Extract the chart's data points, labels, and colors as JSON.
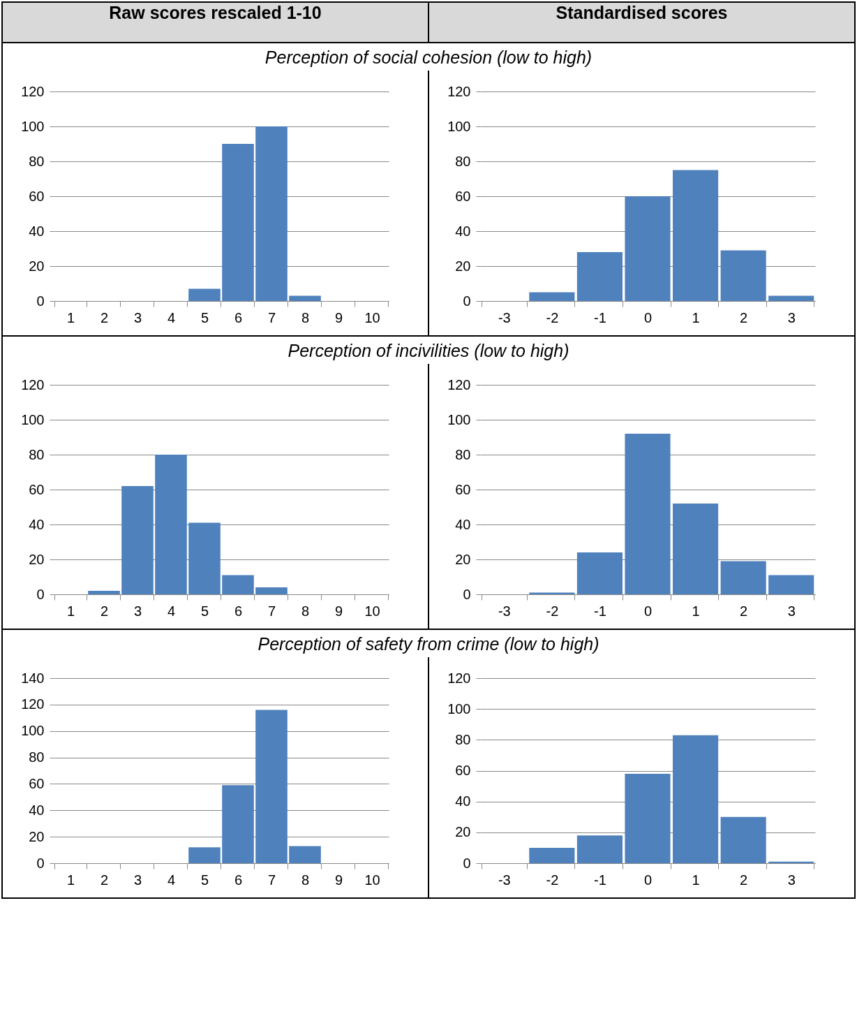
{
  "chart_data": [
    {
      "type": "bar",
      "title": "Perception of social cohesion (low to high)",
      "subtitle": "Raw scores rescaled 1-10",
      "categories": [
        "1",
        "2",
        "3",
        "4",
        "5",
        "6",
        "7",
        "8",
        "9",
        "10"
      ],
      "values": [
        0,
        0,
        0,
        0,
        7,
        90,
        100,
        3,
        0,
        0
      ],
      "color": "#4f81bd",
      "ylim": [
        0,
        120
      ],
      "yticks": [
        0,
        20,
        40,
        60,
        80,
        100,
        120
      ],
      "grid": "y"
    },
    {
      "type": "bar",
      "subtitle": "Standardised scores",
      "categories": [
        "-3",
        "-2",
        "-1",
        "0",
        "1",
        "2",
        "3"
      ],
      "values": [
        0,
        5,
        28,
        60,
        75,
        29,
        3
      ],
      "color": "#4f81bd",
      "ylim": [
        0,
        120
      ],
      "yticks": [
        0,
        20,
        40,
        60,
        80,
        100,
        120
      ],
      "grid": "y"
    },
    {
      "type": "bar",
      "title": "Perception of incivilities (low to high)",
      "categories": [
        "1",
        "2",
        "3",
        "4",
        "5",
        "6",
        "7",
        "8",
        "9",
        "10"
      ],
      "values": [
        0,
        2,
        62,
        80,
        41,
        11,
        4,
        0,
        0,
        0
      ],
      "color": "#4f81bd",
      "ylim": [
        0,
        120
      ],
      "yticks": [
        0,
        20,
        40,
        60,
        80,
        100,
        120
      ],
      "grid": "y"
    },
    {
      "type": "bar",
      "categories": [
        "-3",
        "-2",
        "-1",
        "0",
        "1",
        "2",
        "3"
      ],
      "values": [
        0,
        1,
        24,
        92,
        52,
        19,
        11
      ],
      "color": "#4f81bd",
      "ylim": [
        0,
        120
      ],
      "yticks": [
        0,
        20,
        40,
        60,
        80,
        100,
        120
      ],
      "grid": "y"
    },
    {
      "type": "bar",
      "title": "Perception of safety from crime (low to high)",
      "categories": [
        "1",
        "2",
        "3",
        "4",
        "5",
        "6",
        "7",
        "8",
        "9",
        "10"
      ],
      "values": [
        0,
        0,
        0,
        0,
        12,
        59,
        116,
        13,
        0,
        0
      ],
      "color": "#4f81bd",
      "ylim": [
        0,
        140
      ],
      "yticks": [
        0,
        20,
        40,
        60,
        80,
        100,
        120,
        140
      ],
      "grid": "y"
    },
    {
      "type": "bar",
      "categories": [
        "-3",
        "-2",
        "-1",
        "0",
        "1",
        "2",
        "3"
      ],
      "values": [
        0,
        10,
        18,
        58,
        83,
        30,
        1
      ],
      "color": "#4f81bd",
      "ylim": [
        0,
        120
      ],
      "yticks": [
        0,
        20,
        40,
        60,
        80,
        100,
        120
      ],
      "grid": "y"
    }
  ]
}
